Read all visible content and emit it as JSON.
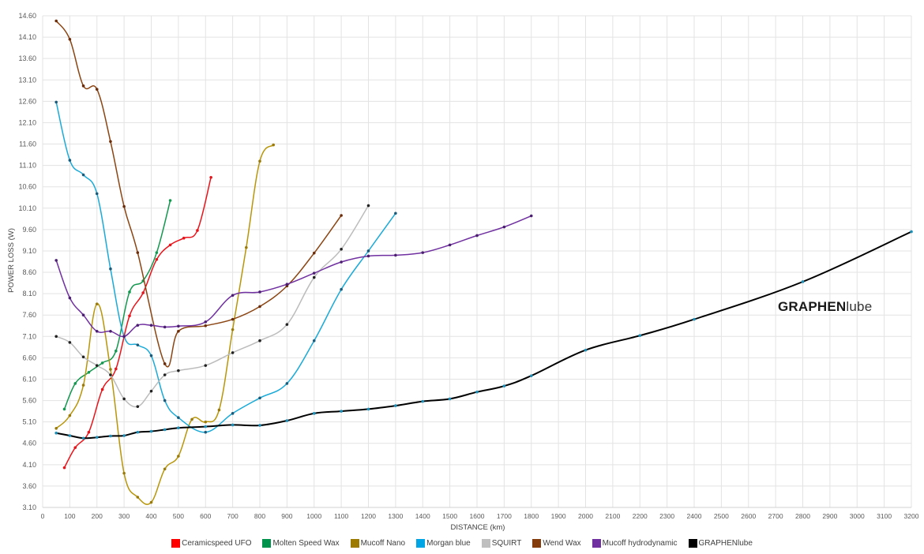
{
  "chart_data": {
    "type": "line",
    "title": "",
    "xlabel": "DISTANCE (km)",
    "ylabel": "POWER LOSS (W)",
    "xlim": [
      0,
      3200
    ],
    "ylim": [
      3.1,
      14.6
    ],
    "x_ticks": [
      0,
      100,
      200,
      300,
      400,
      500,
      600,
      700,
      800,
      900,
      1000,
      1100,
      1200,
      1300,
      1400,
      1500,
      1600,
      1700,
      1800,
      1900,
      2000,
      2100,
      2200,
      2300,
      2400,
      2500,
      2600,
      2700,
      2800,
      2900,
      3000,
      3100,
      3200
    ],
    "y_ticks": [
      "3.10",
      "3.60",
      "4.10",
      "4.60",
      "5.10",
      "5.60",
      "6.10",
      "6.60",
      "7.10",
      "7.60",
      "8.10",
      "8.60",
      "9.10",
      "9.60",
      "10.10",
      "10.60",
      "11.10",
      "11.60",
      "12.10",
      "12.60",
      "13.10",
      "13.60",
      "14.10",
      "14.60"
    ],
    "grid": true,
    "legend_position": "bottom",
    "annotation": {
      "bold": "GRAPHEN",
      "light": "lube"
    },
    "series": [
      {
        "name": "Ceramicspeed UFO",
        "color": "#e8141b",
        "marker": "#e8141b",
        "points": [
          [
            80,
            4.03
          ],
          [
            120,
            4.5
          ],
          [
            170,
            4.86
          ],
          [
            220,
            5.86
          ],
          [
            270,
            6.34
          ],
          [
            320,
            7.58
          ],
          [
            370,
            8.12
          ],
          [
            420,
            8.9
          ],
          [
            470,
            9.24
          ],
          [
            520,
            9.4
          ],
          [
            570,
            9.58
          ],
          [
            620,
            10.82
          ]
        ]
      },
      {
        "name": "Molten Speed Wax",
        "color": "#14984f",
        "marker": "#14984f",
        "points": [
          [
            80,
            5.4
          ],
          [
            120,
            6.0
          ],
          [
            170,
            6.26
          ],
          [
            220,
            6.48
          ],
          [
            270,
            6.76
          ],
          [
            320,
            8.14
          ],
          [
            370,
            8.4
          ],
          [
            420,
            9.06
          ],
          [
            470,
            10.28
          ]
        ]
      },
      {
        "name": "Mucoff Nano",
        "color": "#b8960a",
        "marker": "#9a7a0a",
        "points": [
          [
            50,
            4.95
          ],
          [
            100,
            5.25
          ],
          [
            150,
            5.96
          ],
          [
            200,
            7.86
          ],
          [
            250,
            6.33
          ],
          [
            300,
            3.9
          ],
          [
            350,
            3.34
          ],
          [
            400,
            3.22
          ],
          [
            450,
            4.0
          ],
          [
            500,
            4.3
          ],
          [
            550,
            5.16
          ],
          [
            600,
            5.1
          ],
          [
            650,
            5.38
          ],
          [
            700,
            7.26
          ],
          [
            750,
            9.18
          ],
          [
            800,
            11.2
          ],
          [
            850,
            11.58
          ]
        ]
      },
      {
        "name": "Morgan blue",
        "color": "#1aaad8",
        "marker": "#1a5a78",
        "points": [
          [
            50,
            12.58
          ],
          [
            100,
            11.22
          ],
          [
            150,
            10.88
          ],
          [
            200,
            10.44
          ],
          [
            250,
            8.68
          ],
          [
            300,
            7.1
          ],
          [
            350,
            6.9
          ],
          [
            400,
            6.65
          ],
          [
            450,
            5.6
          ],
          [
            500,
            5.2
          ],
          [
            600,
            4.86
          ],
          [
            700,
            5.3
          ],
          [
            800,
            5.66
          ],
          [
            900,
            6.0
          ],
          [
            1000,
            7.0
          ],
          [
            1100,
            8.2
          ],
          [
            1200,
            9.1
          ],
          [
            1300,
            9.98
          ]
        ]
      },
      {
        "name": "SQUIRT",
        "color": "#bcbcbc",
        "marker": "#222222",
        "points": [
          [
            50,
            7.1
          ],
          [
            100,
            6.96
          ],
          [
            150,
            6.62
          ],
          [
            200,
            6.42
          ],
          [
            250,
            6.2
          ],
          [
            300,
            5.64
          ],
          [
            350,
            5.46
          ],
          [
            400,
            5.82
          ],
          [
            450,
            6.2
          ],
          [
            500,
            6.3
          ],
          [
            600,
            6.42
          ],
          [
            700,
            6.72
          ],
          [
            800,
            7.0
          ],
          [
            900,
            7.38
          ],
          [
            1000,
            8.48
          ],
          [
            1100,
            9.14
          ],
          [
            1200,
            10.16
          ]
        ]
      },
      {
        "name": "Wend Wax",
        "color": "#8b4513",
        "marker": "#6b2c0a",
        "points": [
          [
            50,
            14.48
          ],
          [
            100,
            14.05
          ],
          [
            150,
            12.96
          ],
          [
            200,
            12.88
          ],
          [
            250,
            11.66
          ],
          [
            300,
            10.14
          ],
          [
            350,
            9.06
          ],
          [
            450,
            6.46
          ],
          [
            500,
            7.22
          ],
          [
            600,
            7.35
          ],
          [
            700,
            7.5
          ],
          [
            800,
            7.8
          ],
          [
            900,
            8.28
          ],
          [
            1000,
            9.05
          ],
          [
            1100,
            9.93
          ]
        ]
      },
      {
        "name": "Mucoff hydrodynamic",
        "color": "#7030a0",
        "marker": "#4b1f70",
        "points": [
          [
            50,
            8.88
          ],
          [
            100,
            8.0
          ],
          [
            150,
            7.6
          ],
          [
            200,
            7.22
          ],
          [
            250,
            7.22
          ],
          [
            300,
            7.1
          ],
          [
            350,
            7.36
          ],
          [
            400,
            7.36
          ],
          [
            450,
            7.32
          ],
          [
            500,
            7.34
          ],
          [
            600,
            7.44
          ],
          [
            700,
            8.06
          ],
          [
            800,
            8.14
          ],
          [
            900,
            8.32
          ],
          [
            1000,
            8.58
          ],
          [
            1100,
            8.84
          ],
          [
            1200,
            8.98
          ],
          [
            1300,
            9.0
          ],
          [
            1400,
            9.06
          ],
          [
            1500,
            9.24
          ],
          [
            1600,
            9.46
          ],
          [
            1700,
            9.66
          ],
          [
            1800,
            9.92
          ]
        ]
      },
      {
        "name": "GRAPHENlube",
        "color": "#000000",
        "marker": "#1a8fb8",
        "points": [
          [
            50,
            4.84
          ],
          [
            100,
            4.78
          ],
          [
            150,
            4.72
          ],
          [
            200,
            4.74
          ],
          [
            250,
            4.77
          ],
          [
            300,
            4.78
          ],
          [
            350,
            4.86
          ],
          [
            400,
            4.88
          ],
          [
            450,
            4.92
          ],
          [
            500,
            4.96
          ],
          [
            600,
            4.99
          ],
          [
            700,
            5.03
          ],
          [
            800,
            5.02
          ],
          [
            900,
            5.13
          ],
          [
            1000,
            5.3
          ],
          [
            1100,
            5.35
          ],
          [
            1200,
            5.4
          ],
          [
            1300,
            5.48
          ],
          [
            1400,
            5.58
          ],
          [
            1500,
            5.64
          ],
          [
            1600,
            5.8
          ],
          [
            1700,
            5.94
          ],
          [
            1800,
            6.18
          ],
          [
            2000,
            6.78
          ],
          [
            2200,
            7.12
          ],
          [
            2400,
            7.5
          ],
          [
            2800,
            8.38
          ],
          [
            3200,
            9.55
          ]
        ]
      }
    ]
  },
  "legend": {
    "items": [
      {
        "label": "Ceramicspeed UFO",
        "color": "#ff0000"
      },
      {
        "label": "Molten Speed Wax",
        "color": "#00924a"
      },
      {
        "label": "Mucoff Nano",
        "color": "#9c7a00"
      },
      {
        "label": "Morgan blue",
        "color": "#00a5e6"
      },
      {
        "label": "SQUIRT",
        "color": "#bfbfbf"
      },
      {
        "label": "Wend Wax",
        "color": "#843c0c"
      },
      {
        "label": "Mucoff hydrodynamic",
        "color": "#7030a0"
      },
      {
        "label": "GRAPHENlube",
        "color": "#000000"
      }
    ]
  }
}
